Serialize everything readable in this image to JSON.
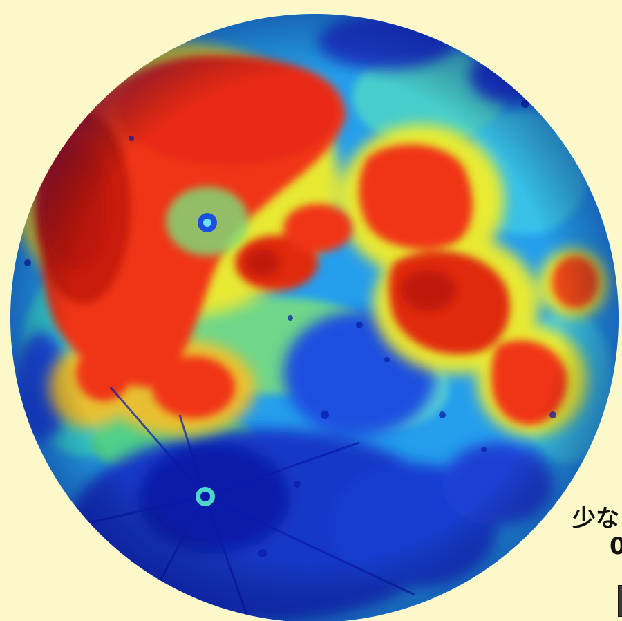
{
  "background_color": "#fdf8c9",
  "image_subject": "moon-false-color-map",
  "palette": {
    "low": "#0a1aa8",
    "mid_low": "#1e6ff0",
    "mid": "#2fd7e6",
    "mid_high": "#f2ee2a",
    "high": "#f03412",
    "very_high": "#b8130b"
  },
  "legend": {
    "label_line_1": "少な",
    "label_line_2": "0"
  }
}
